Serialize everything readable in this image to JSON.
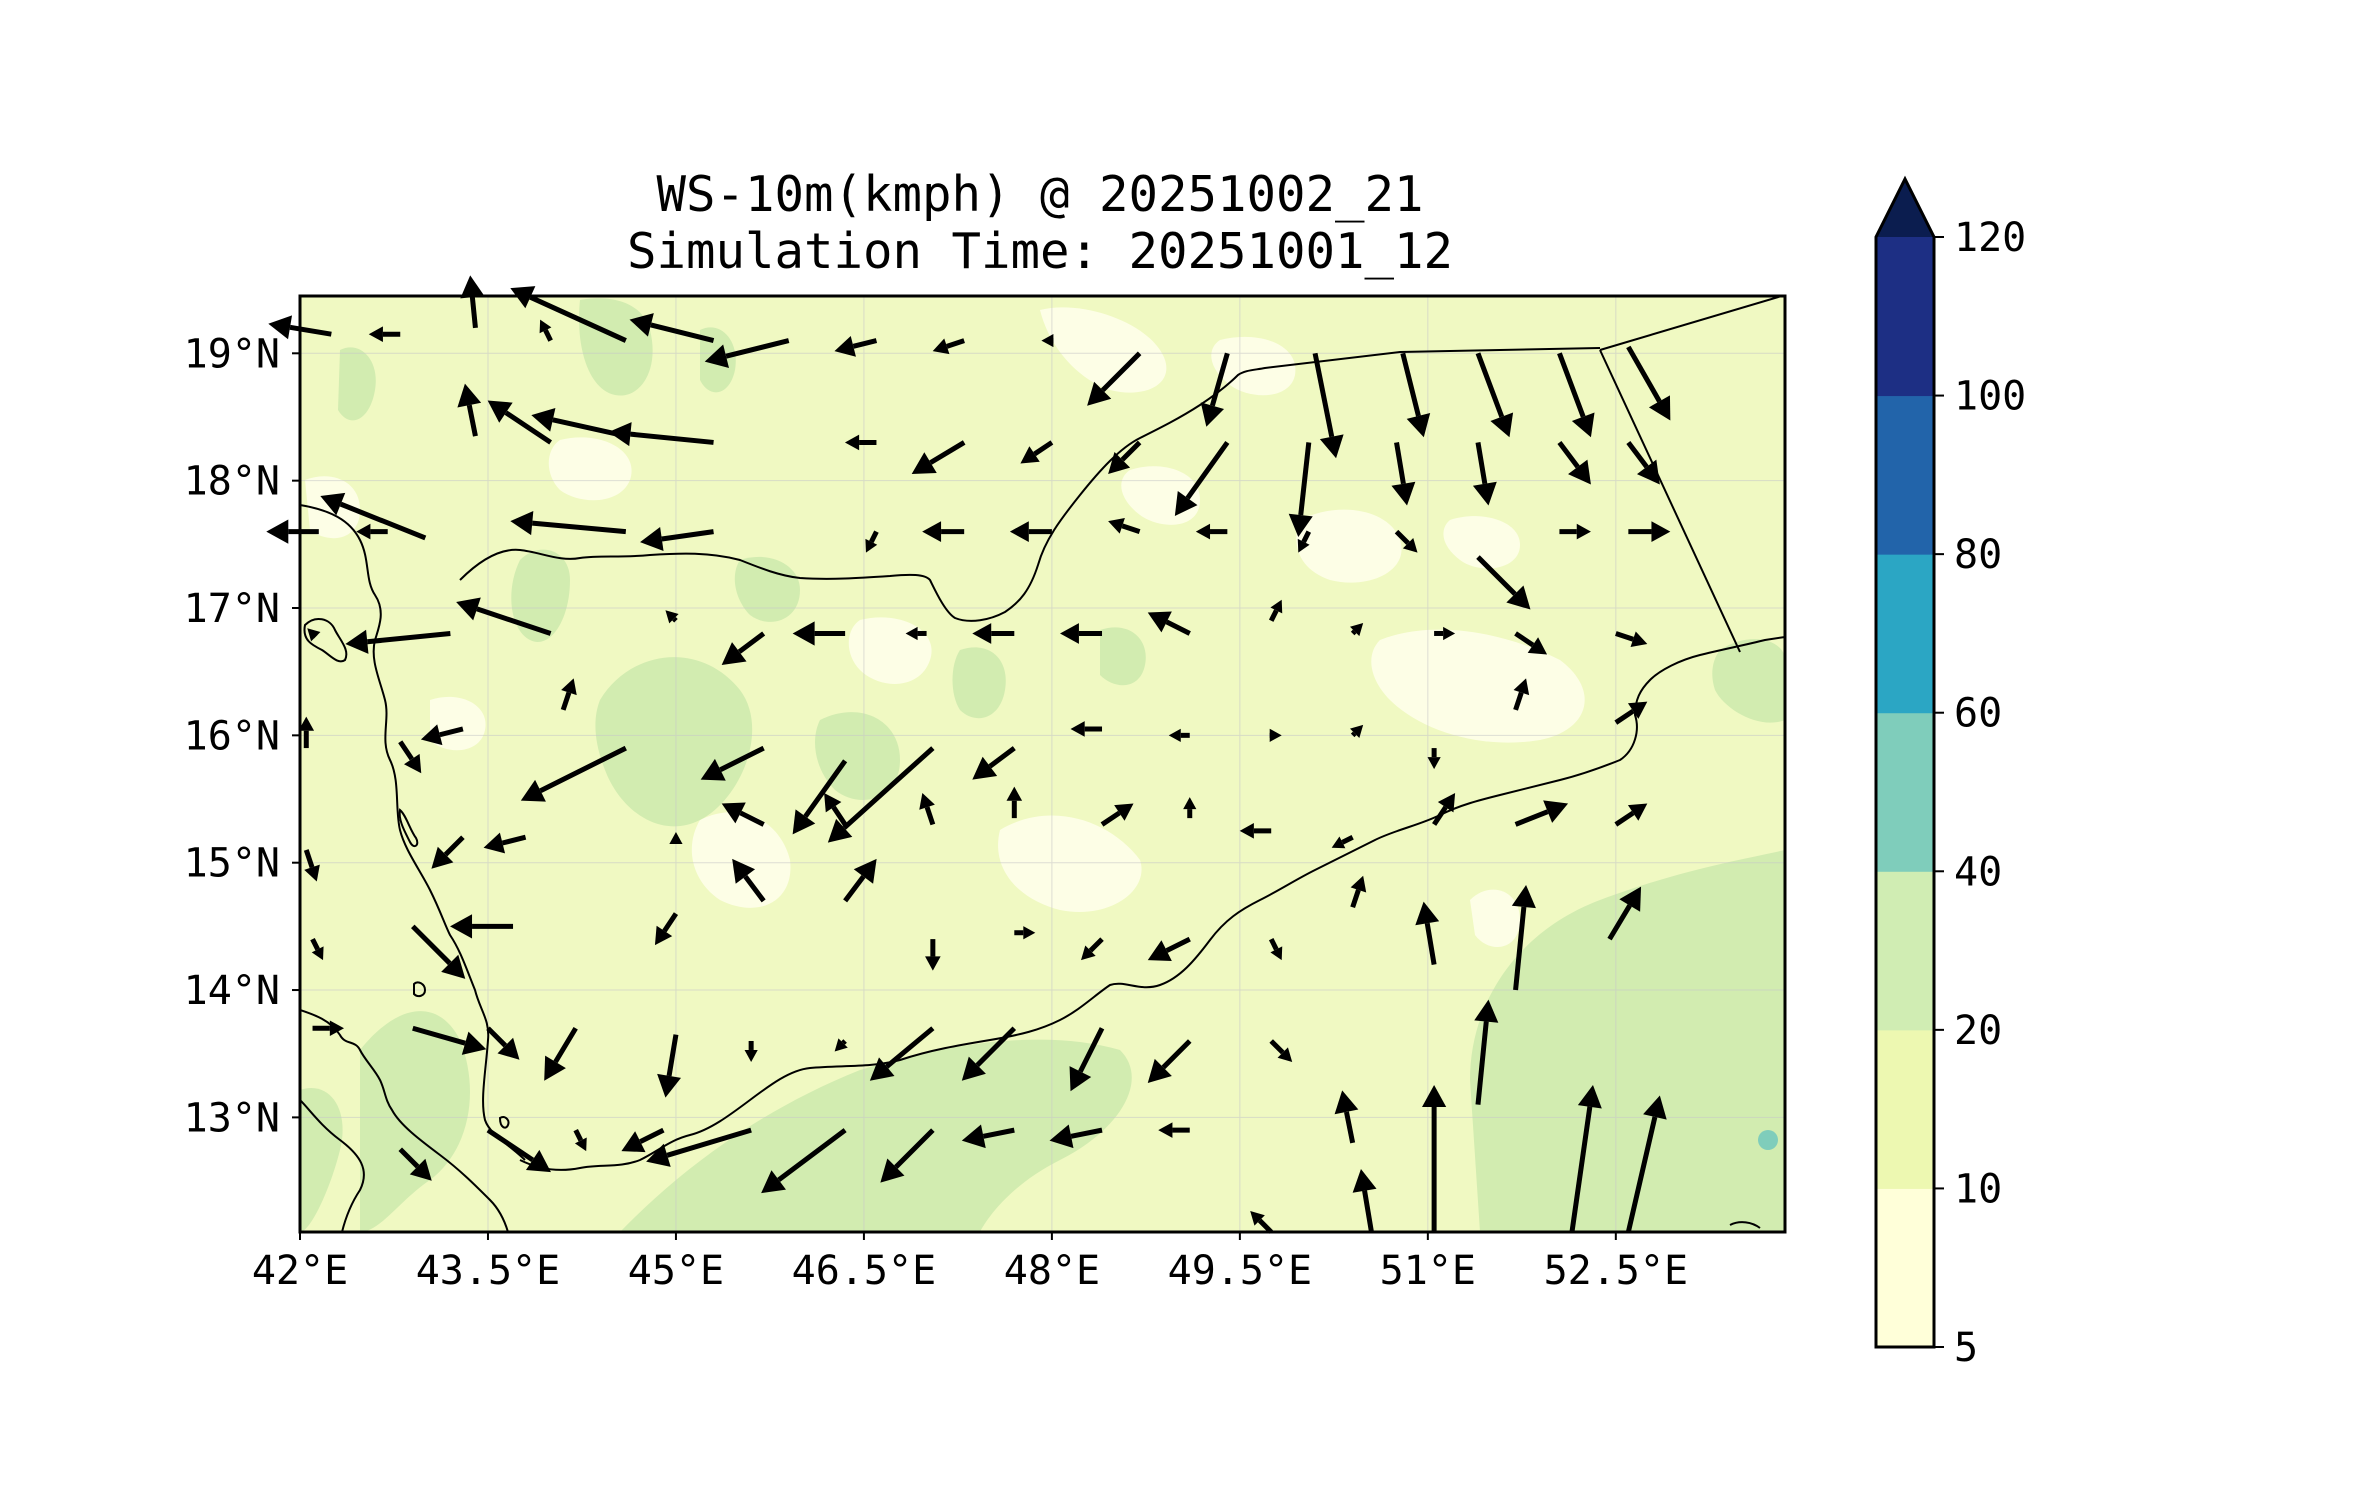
{
  "title": "WS-10m(kmph) @ 20251002_21",
  "subtitle": "Simulation Time: 20251001_12",
  "map": {
    "lon_range": [
      42.0,
      53.85
    ],
    "lat_range": [
      12.1,
      19.45
    ],
    "lon_ticks": [
      "42°E",
      "43.5°E",
      "45°E",
      "46.5°E",
      "48°E",
      "49.5°E",
      "51°E",
      "52.5°E"
    ],
    "lon_tick_values": [
      42.0,
      43.5,
      45.0,
      46.5,
      48.0,
      49.5,
      51.0,
      52.5
    ],
    "lat_ticks": [
      "19°N",
      "18°N",
      "17°N",
      "16°N",
      "15°N",
      "14°N",
      "13°N"
    ],
    "lat_tick_values": [
      19,
      18,
      17,
      16,
      15,
      14,
      13
    ]
  },
  "colorbar": {
    "levels": [
      "5",
      "10",
      "20",
      "40",
      "60",
      "80",
      "100",
      "120"
    ],
    "colors": [
      "#ffffd9",
      "#edf8b1",
      "#d0edb3",
      "#7fcdbb",
      "#2ba6c4",
      "#2264aa",
      "#1d2f84"
    ],
    "extend_color": "#0b1d4f"
  },
  "colors": {
    "land_base": "#f0f9c2",
    "light_patch": "#fdfee6",
    "green_patch": "#d2ecb0",
    "teal_spot": "#7fcdbb",
    "arrow": "#000000",
    "border": "#000000"
  },
  "wind_arrows": [
    {
      "lon": 42.25,
      "lat": 19.15,
      "u": -6,
      "v": 1
    },
    {
      "lon": 42.8,
      "lat": 19.15,
      "u": -3,
      "v": 0
    },
    {
      "lon": 43.4,
      "lat": 19.2,
      "u": -0.5,
      "v": 5
    },
    {
      "lon": 44.0,
      "lat": 19.1,
      "u": -1,
      "v": 2
    },
    {
      "lon": 44.6,
      "lat": 19.1,
      "u": -11,
      "v": 5
    },
    {
      "lon": 45.3,
      "lat": 19.1,
      "u": -8,
      "v": 2
    },
    {
      "lon": 45.9,
      "lat": 19.1,
      "u": -8,
      "v": -2
    },
    {
      "lon": 46.6,
      "lat": 19.1,
      "u": -4,
      "v": -1
    },
    {
      "lon": 47.3,
      "lat": 19.1,
      "u": -3,
      "v": -1
    },
    {
      "lon": 48.0,
      "lat": 19.1,
      "u": -1,
      "v": 0
    },
    {
      "lon": 48.7,
      "lat": 19.0,
      "u": -5,
      "v": -5
    },
    {
      "lon": 49.4,
      "lat": 19.0,
      "u": -2,
      "v": -7
    },
    {
      "lon": 50.1,
      "lat": 19.0,
      "u": 2,
      "v": -10
    },
    {
      "lon": 50.8,
      "lat": 19.0,
      "u": 2,
      "v": -8
    },
    {
      "lon": 51.4,
      "lat": 19.0,
      "u": 3,
      "v": -8
    },
    {
      "lon": 52.05,
      "lat": 19.0,
      "u": 3,
      "v": -8
    },
    {
      "lon": 52.6,
      "lat": 19.05,
      "u": 4,
      "v": -7
    },
    {
      "lon": 43.4,
      "lat": 18.35,
      "u": -1,
      "v": 5
    },
    {
      "lon": 44.0,
      "lat": 18.3,
      "u": -6,
      "v": 4
    },
    {
      "lon": 44.6,
      "lat": 18.35,
      "u": -9,
      "v": 2
    },
    {
      "lon": 45.3,
      "lat": 18.3,
      "u": -10,
      "v": 1
    },
    {
      "lon": 46.6,
      "lat": 18.3,
      "u": -3,
      "v": 0
    },
    {
      "lon": 47.3,
      "lat": 18.3,
      "u": -5,
      "v": -3
    },
    {
      "lon": 48.0,
      "lat": 18.3,
      "u": -3,
      "v": -2
    },
    {
      "lon": 48.7,
      "lat": 18.3,
      "u": -3,
      "v": -3
    },
    {
      "lon": 49.4,
      "lat": 18.3,
      "u": -5,
      "v": -7
    },
    {
      "lon": 50.05,
      "lat": 18.3,
      "u": -1,
      "v": -9
    },
    {
      "lon": 50.75,
      "lat": 18.3,
      "u": 1,
      "v": -6
    },
    {
      "lon": 51.4,
      "lat": 18.3,
      "u": 1,
      "v": -6
    },
    {
      "lon": 52.05,
      "lat": 18.3,
      "u": 3,
      "v": -4
    },
    {
      "lon": 52.6,
      "lat": 18.3,
      "u": 3,
      "v": -4
    },
    {
      "lon": 42.15,
      "lat": 17.6,
      "u": -5,
      "v": 0
    },
    {
      "lon": 42.7,
      "lat": 17.6,
      "u": -3,
      "v": 0
    },
    {
      "lon": 43.0,
      "lat": 17.55,
      "u": -10,
      "v": 4
    },
    {
      "lon": 44.6,
      "lat": 17.6,
      "u": -11,
      "v": 1
    },
    {
      "lon": 45.3,
      "lat": 17.6,
      "u": -7,
      "v": -1
    },
    {
      "lon": 46.6,
      "lat": 17.6,
      "u": -1,
      "v": -2
    },
    {
      "lon": 47.3,
      "lat": 17.6,
      "u": -4,
      "v": 0
    },
    {
      "lon": 48.0,
      "lat": 17.6,
      "u": -4,
      "v": 0
    },
    {
      "lon": 48.7,
      "lat": 17.6,
      "u": -3,
      "v": 1
    },
    {
      "lon": 49.4,
      "lat": 17.6,
      "u": -3,
      "v": 0
    },
    {
      "lon": 50.05,
      "lat": 17.6,
      "u": -1,
      "v": -2
    },
    {
      "lon": 50.75,
      "lat": 17.6,
      "u": 2,
      "v": -2
    },
    {
      "lon": 51.4,
      "lat": 17.4,
      "u": 5,
      "v": -5
    },
    {
      "lon": 52.05,
      "lat": 17.6,
      "u": 3,
      "v": 0
    },
    {
      "lon": 52.6,
      "lat": 17.6,
      "u": 4,
      "v": 0
    },
    {
      "lon": 42.1,
      "lat": 16.8,
      "u": -0.5,
      "v": 0.5
    },
    {
      "lon": 43.2,
      "lat": 16.8,
      "u": -10,
      "v": -1
    },
    {
      "lon": 44.0,
      "lat": 16.8,
      "u": -9,
      "v": 3
    },
    {
      "lon": 45.0,
      "lat": 16.9,
      "u": -1,
      "v": 1
    },
    {
      "lon": 45.7,
      "lat": 16.8,
      "u": -4,
      "v": -3
    },
    {
      "lon": 46.35,
      "lat": 16.8,
      "u": -5,
      "v": 0
    },
    {
      "lon": 47.0,
      "lat": 16.8,
      "u": -2,
      "v": 0
    },
    {
      "lon": 47.7,
      "lat": 16.8,
      "u": -4,
      "v": 0
    },
    {
      "lon": 48.4,
      "lat": 16.8,
      "u": -4,
      "v": 0
    },
    {
      "lon": 49.1,
      "lat": 16.8,
      "u": -4,
      "v": 2
    },
    {
      "lon": 49.75,
      "lat": 16.9,
      "u": 1,
      "v": 2
    },
    {
      "lon": 50.4,
      "lat": 16.8,
      "u": 1,
      "v": 1
    },
    {
      "lon": 51.05,
      "lat": 16.8,
      "u": 2,
      "v": 0
    },
    {
      "lon": 51.7,
      "lat": 16.8,
      "u": 3,
      "v": -2
    },
    {
      "lon": 52.5,
      "lat": 16.8,
      "u": 3,
      "v": -1
    },
    {
      "lon": 42.05,
      "lat": 15.9,
      "u": 0,
      "v": 3
    },
    {
      "lon": 42.8,
      "lat": 15.95,
      "u": 2,
      "v": -3
    },
    {
      "lon": 43.3,
      "lat": 16.05,
      "u": -4,
      "v": -1
    },
    {
      "lon": 44.1,
      "lat": 16.2,
      "u": 1,
      "v": 3
    },
    {
      "lon": 44.6,
      "lat": 15.9,
      "u": -10,
      "v": -5
    },
    {
      "lon": 45.7,
      "lat": 15.9,
      "u": -6,
      "v": -3
    },
    {
      "lon": 46.35,
      "lat": 15.8,
      "u": -5,
      "v": -7
    },
    {
      "lon": 47.05,
      "lat": 15.9,
      "u": -10,
      "v": -9
    },
    {
      "lon": 47.7,
      "lat": 15.9,
      "u": -4,
      "v": -3
    },
    {
      "lon": 48.4,
      "lat": 16.05,
      "u": -3,
      "v": 0
    },
    {
      "lon": 49.1,
      "lat": 16.0,
      "u": -2,
      "v": 0
    },
    {
      "lon": 49.75,
      "lat": 16.0,
      "u": 1,
      "v": 0
    },
    {
      "lon": 50.4,
      "lat": 16.0,
      "u": 1,
      "v": 1
    },
    {
      "lon": 51.05,
      "lat": 15.9,
      "u": 0,
      "v": -2
    },
    {
      "lon": 51.7,
      "lat": 16.2,
      "u": 1,
      "v": 3
    },
    {
      "lon": 52.5,
      "lat": 16.1,
      "u": 3,
      "v": 2
    },
    {
      "lon": 42.05,
      "lat": 15.1,
      "u": 1,
      "v": -3
    },
    {
      "lon": 43.3,
      "lat": 15.2,
      "u": -3,
      "v": -3
    },
    {
      "lon": 43.8,
      "lat": 15.2,
      "u": -4,
      "v": -1
    },
    {
      "lon": 45.0,
      "lat": 15.2,
      "u": 0,
      "v": 0.5
    },
    {
      "lon": 45.7,
      "lat": 15.3,
      "u": -4,
      "v": 2
    },
    {
      "lon": 46.35,
      "lat": 15.3,
      "u": -2,
      "v": 3
    },
    {
      "lon": 47.05,
      "lat": 15.3,
      "u": -1,
      "v": 3
    },
    {
      "lon": 47.7,
      "lat": 15.35,
      "u": 0,
      "v": 3
    },
    {
      "lon": 48.4,
      "lat": 15.3,
      "u": 3,
      "v": 2
    },
    {
      "lon": 49.1,
      "lat": 15.35,
      "u": 0,
      "v": 2
    },
    {
      "lon": 49.75,
      "lat": 15.25,
      "u": -3,
      "v": 0
    },
    {
      "lon": 50.4,
      "lat": 15.2,
      "u": -2,
      "v": -1
    },
    {
      "lon": 51.05,
      "lat": 15.3,
      "u": 2,
      "v": 3
    },
    {
      "lon": 51.7,
      "lat": 15.3,
      "u": 5,
      "v": 2
    },
    {
      "lon": 52.5,
      "lat": 15.3,
      "u": 3,
      "v": 2
    },
    {
      "lon": 42.1,
      "lat": 14.4,
      "u": 1,
      "v": -2
    },
    {
      "lon": 42.9,
      "lat": 14.5,
      "u": 5,
      "v": -5
    },
    {
      "lon": 43.7,
      "lat": 14.5,
      "u": -6,
      "v": 0
    },
    {
      "lon": 45.0,
      "lat": 14.6,
      "u": -2,
      "v": -3
    },
    {
      "lon": 45.7,
      "lat": 14.7,
      "u": -3,
      "v": 4
    },
    {
      "lon": 46.35,
      "lat": 14.7,
      "u": 3,
      "v": 4
    },
    {
      "lon": 47.05,
      "lat": 14.4,
      "u": 0,
      "v": -3
    },
    {
      "lon": 47.7,
      "lat": 14.45,
      "u": 2,
      "v": 0
    },
    {
      "lon": 48.4,
      "lat": 14.4,
      "u": -2,
      "v": -2
    },
    {
      "lon": 49.1,
      "lat": 14.4,
      "u": -4,
      "v": -2
    },
    {
      "lon": 49.75,
      "lat": 14.4,
      "u": 1,
      "v": -2
    },
    {
      "lon": 50.4,
      "lat": 14.65,
      "u": 1,
      "v": 3
    },
    {
      "lon": 51.05,
      "lat": 14.2,
      "u": -1,
      "v": 6
    },
    {
      "lon": 51.7,
      "lat": 14.0,
      "u": 1,
      "v": 10
    },
    {
      "lon": 52.45,
      "lat": 14.4,
      "u": 3,
      "v": 5
    },
    {
      "lon": 42.1,
      "lat": 13.7,
      "u": 3,
      "v": 0
    },
    {
      "lon": 42.9,
      "lat": 13.7,
      "u": 7,
      "v": -2
    },
    {
      "lon": 43.5,
      "lat": 13.7,
      "u": 3,
      "v": -3
    },
    {
      "lon": 44.2,
      "lat": 13.7,
      "u": -3,
      "v": -5
    },
    {
      "lon": 45.0,
      "lat": 13.65,
      "u": -1,
      "v": -6
    },
    {
      "lon": 45.6,
      "lat": 13.6,
      "u": 0,
      "v": -2
    },
    {
      "lon": 46.35,
      "lat": 13.6,
      "u": -1,
      "v": -1
    },
    {
      "lon": 47.05,
      "lat": 13.7,
      "u": -6,
      "v": -5
    },
    {
      "lon": 47.7,
      "lat": 13.7,
      "u": -5,
      "v": -5
    },
    {
      "lon": 48.4,
      "lat": 13.7,
      "u": -3,
      "v": -6
    },
    {
      "lon": 49.1,
      "lat": 13.6,
      "u": -4,
      "v": -4
    },
    {
      "lon": 49.75,
      "lat": 13.6,
      "u": 2,
      "v": -2
    },
    {
      "lon": 50.4,
      "lat": 12.8,
      "u": -1,
      "v": 5
    },
    {
      "lon": 51.05,
      "lat": 12.1,
      "u": 0,
      "v": 14
    },
    {
      "lon": 51.4,
      "lat": 13.1,
      "u": 1,
      "v": 10
    },
    {
      "lon": 52.15,
      "lat": 12.1,
      "u": 2,
      "v": 14
    },
    {
      "lon": 52.6,
      "lat": 12.1,
      "u": 3,
      "v": 13
    },
    {
      "lon": 42.8,
      "lat": 12.75,
      "u": 3,
      "v": -3
    },
    {
      "lon": 43.5,
      "lat": 12.9,
      "u": 6,
      "v": -4
    },
    {
      "lon": 44.2,
      "lat": 12.9,
      "u": 1,
      "v": -2
    },
    {
      "lon": 44.9,
      "lat": 12.9,
      "u": -4,
      "v": -2
    },
    {
      "lon": 45.6,
      "lat": 12.9,
      "u": -10,
      "v": -3
    },
    {
      "lon": 46.35,
      "lat": 12.9,
      "u": -8,
      "v": -6
    },
    {
      "lon": 47.05,
      "lat": 12.9,
      "u": -5,
      "v": -5
    },
    {
      "lon": 47.7,
      "lat": 12.9,
      "u": -5,
      "v": -1
    },
    {
      "lon": 48.4,
      "lat": 12.9,
      "u": -5,
      "v": -1
    },
    {
      "lon": 49.1,
      "lat": 12.9,
      "u": -3,
      "v": 0
    },
    {
      "lon": 49.75,
      "lat": 12.1,
      "u": -2,
      "v": 2
    },
    {
      "lon": 50.55,
      "lat": 12.1,
      "u": -1,
      "v": 6
    }
  ]
}
